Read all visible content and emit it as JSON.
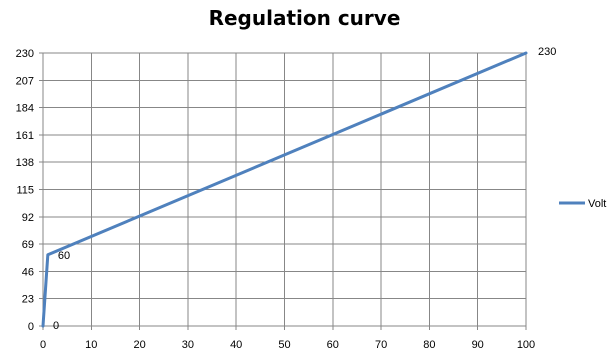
{
  "chart_data": {
    "type": "line",
    "title": "Regulation curve",
    "xlabel": "",
    "ylabel": "",
    "xlim": [
      0,
      100
    ],
    "ylim": [
      0,
      230
    ],
    "x_ticks": [
      0,
      10,
      20,
      30,
      40,
      50,
      60,
      70,
      80,
      90,
      100
    ],
    "y_ticks": [
      0,
      23,
      46,
      69,
      92,
      115,
      138,
      161,
      184,
      207,
      230
    ],
    "grid": true,
    "legend_position": "right",
    "series": [
      {
        "name": "Volt",
        "color": "#4f81bd",
        "x": [
          0,
          1,
          100
        ],
        "y": [
          0,
          60,
          230
        ]
      }
    ],
    "data_labels": [
      {
        "x": 0,
        "y": 0,
        "text": "0"
      },
      {
        "x": 1,
        "y": 60,
        "text": "60"
      },
      {
        "x": 100,
        "y": 230,
        "text": "230"
      }
    ]
  }
}
